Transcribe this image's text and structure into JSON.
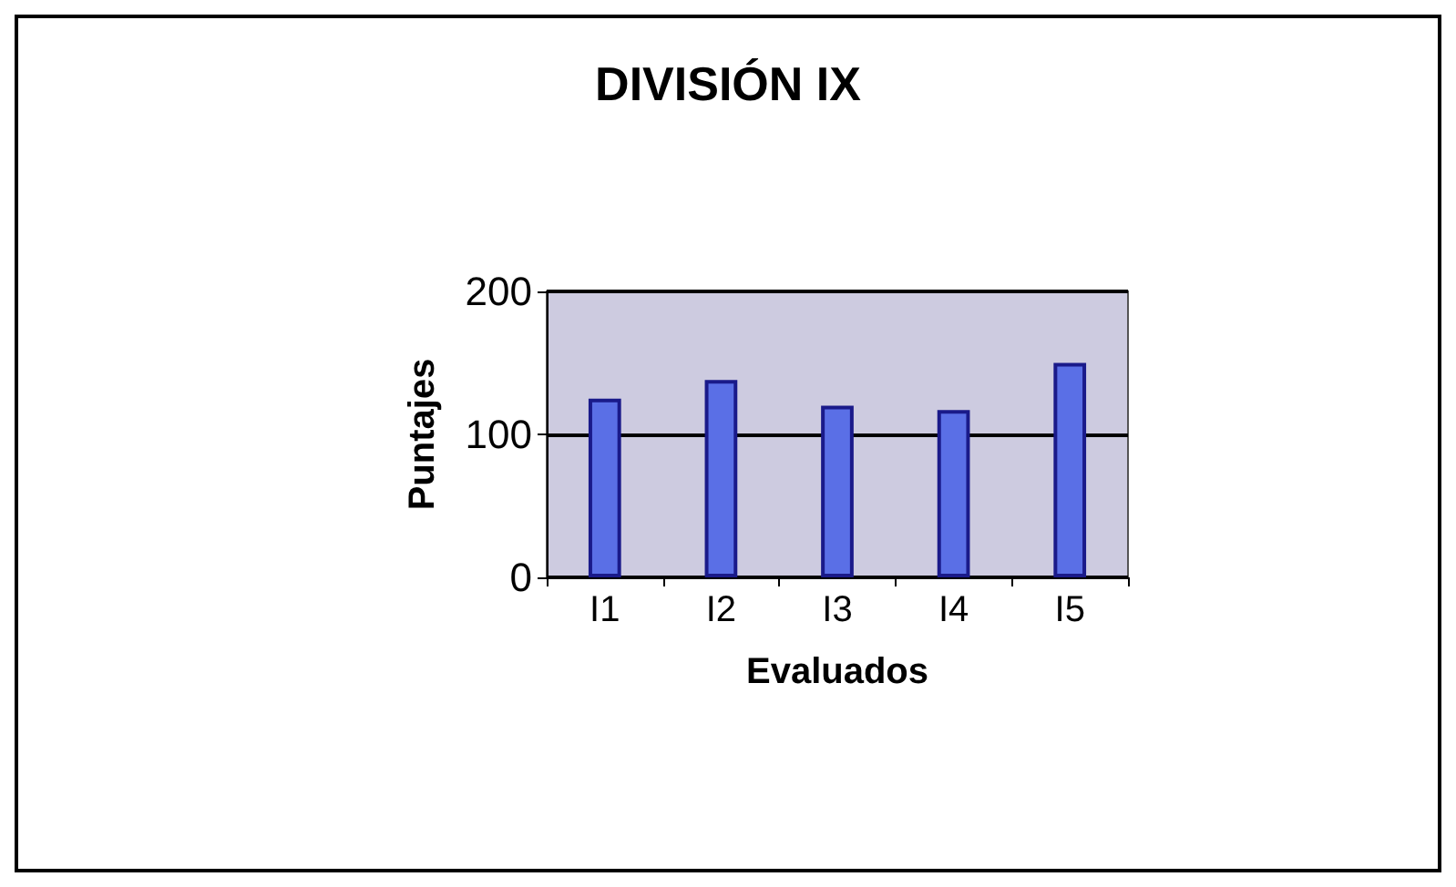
{
  "chart_data": {
    "type": "bar",
    "title": "DIVISIÓN IX",
    "xlabel": "Evaluados",
    "ylabel": "Puntajes",
    "categories": [
      "I1",
      "I2",
      "I3",
      "I4",
      "I5"
    ],
    "values": [
      125,
      138,
      120,
      117,
      150
    ],
    "color": "#5a6fe6",
    "ylim": [
      0,
      200
    ],
    "yticks": [
      0,
      100,
      200
    ],
    "grid": "y"
  }
}
